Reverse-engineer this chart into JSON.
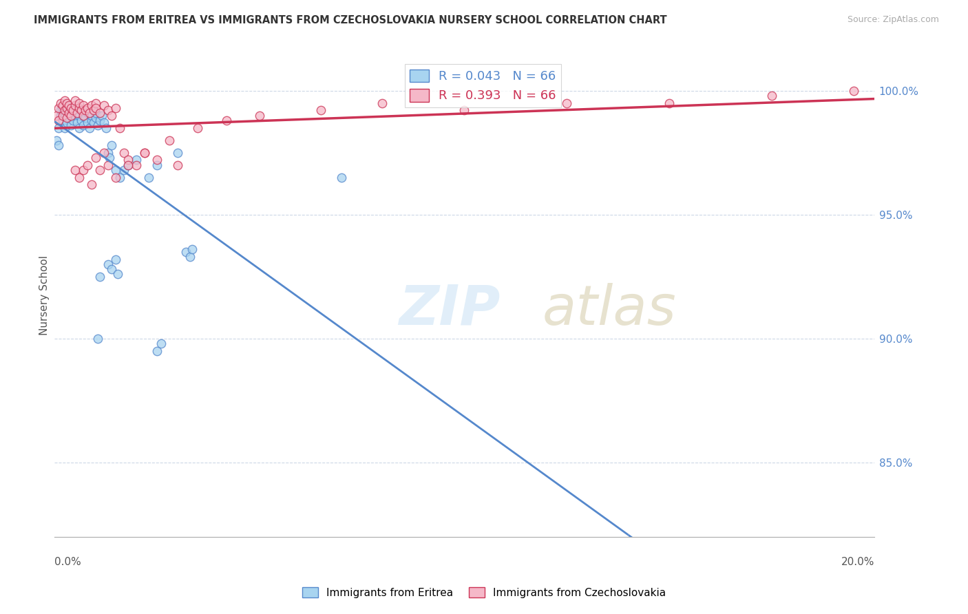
{
  "title": "IMMIGRANTS FROM ERITREA VS IMMIGRANTS FROM CZECHOSLOVAKIA NURSERY SCHOOL CORRELATION CHART",
  "source": "Source: ZipAtlas.com",
  "ylabel": "Nursery School",
  "R_blue": 0.043,
  "N_blue": 66,
  "R_pink": 0.393,
  "N_pink": 66,
  "color_blue": "#a8d4f0",
  "color_pink": "#f5b8c8",
  "color_trendline_blue": "#5588cc",
  "color_trendline_pink": "#cc3355",
  "xlim": [
    0.0,
    20.0
  ],
  "ylim": [
    82.0,
    101.5
  ],
  "yticks": [
    85.0,
    90.0,
    95.0,
    100.0
  ],
  "ytick_labels": [
    "85.0%",
    "90.0%",
    "95.0%",
    "100.0%"
  ],
  "blue_scatter_x": [
    0.05,
    0.1,
    0.1,
    0.15,
    0.15,
    0.2,
    0.2,
    0.2,
    0.25,
    0.25,
    0.3,
    0.3,
    0.3,
    0.35,
    0.35,
    0.4,
    0.4,
    0.45,
    0.45,
    0.5,
    0.5,
    0.55,
    0.55,
    0.6,
    0.6,
    0.65,
    0.65,
    0.7,
    0.7,
    0.75,
    0.8,
    0.8,
    0.85,
    0.9,
    0.9,
    0.95,
    1.0,
    1.0,
    1.05,
    1.1,
    1.15,
    1.2,
    1.25,
    1.3,
    1.35,
    1.4,
    1.5,
    1.6,
    1.7,
    1.8,
    2.0,
    2.3,
    2.5,
    3.0,
    1.1,
    1.3,
    1.4,
    1.5,
    1.55,
    7.0,
    3.2,
    3.3,
    3.35,
    2.5,
    2.6,
    1.05
  ],
  "blue_scatter_y": [
    98.0,
    97.8,
    98.5,
    99.0,
    99.2,
    98.8,
    99.1,
    99.3,
    98.5,
    99.0,
    98.7,
    99.2,
    99.4,
    98.9,
    99.1,
    98.6,
    99.0,
    98.8,
    99.2,
    99.0,
    99.3,
    98.7,
    99.1,
    98.5,
    99.0,
    98.8,
    99.2,
    98.6,
    99.0,
    98.9,
    98.7,
    99.1,
    98.5,
    98.8,
    99.0,
    98.7,
    98.9,
    99.1,
    98.6,
    98.8,
    99.0,
    98.7,
    98.5,
    97.5,
    97.3,
    97.8,
    96.8,
    96.5,
    96.8,
    97.0,
    97.2,
    96.5,
    97.0,
    97.5,
    92.5,
    93.0,
    92.8,
    93.2,
    92.6,
    96.5,
    93.5,
    93.3,
    93.6,
    89.5,
    89.8,
    90.0
  ],
  "pink_scatter_x": [
    0.05,
    0.1,
    0.1,
    0.15,
    0.2,
    0.2,
    0.25,
    0.25,
    0.3,
    0.3,
    0.3,
    0.35,
    0.35,
    0.4,
    0.4,
    0.45,
    0.5,
    0.5,
    0.55,
    0.6,
    0.6,
    0.65,
    0.7,
    0.7,
    0.75,
    0.8,
    0.85,
    0.9,
    0.95,
    1.0,
    1.0,
    1.1,
    1.2,
    1.3,
    1.4,
    1.5,
    1.6,
    1.7,
    1.8,
    2.0,
    2.2,
    2.5,
    3.0,
    0.5,
    0.6,
    0.7,
    0.8,
    0.9,
    1.0,
    1.1,
    1.2,
    1.3,
    1.5,
    1.8,
    2.2,
    2.8,
    3.5,
    4.2,
    5.0,
    6.5,
    8.0,
    10.0,
    12.5,
    15.0,
    17.5,
    19.5
  ],
  "pink_scatter_y": [
    99.0,
    98.8,
    99.3,
    99.5,
    99.0,
    99.4,
    99.2,
    99.6,
    98.9,
    99.3,
    99.5,
    99.1,
    99.4,
    99.0,
    99.3,
    99.2,
    99.4,
    99.6,
    99.1,
    99.3,
    99.5,
    99.2,
    99.0,
    99.4,
    99.2,
    99.3,
    99.1,
    99.4,
    99.2,
    99.5,
    99.3,
    99.1,
    99.4,
    99.2,
    99.0,
    99.3,
    98.5,
    97.5,
    97.2,
    97.0,
    97.5,
    97.2,
    97.0,
    96.8,
    96.5,
    96.8,
    97.0,
    96.2,
    97.3,
    96.8,
    97.5,
    97.0,
    96.5,
    97.0,
    97.5,
    98.0,
    98.5,
    98.8,
    99.0,
    99.2,
    99.5,
    99.2,
    99.5,
    99.5,
    99.8,
    100.0
  ]
}
